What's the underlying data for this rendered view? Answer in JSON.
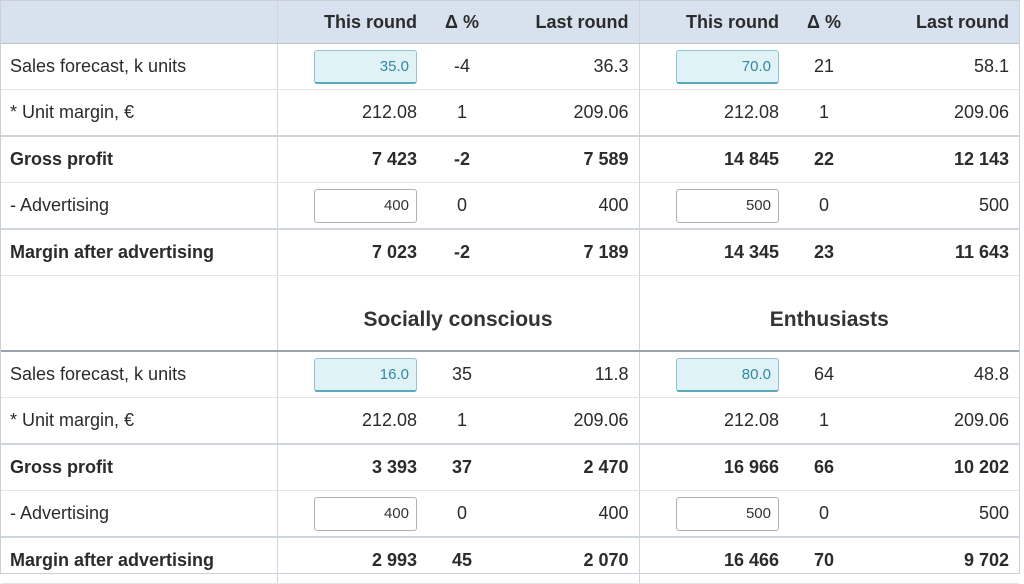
{
  "headers": {
    "this_round": "This round",
    "delta": "Δ %",
    "last_round": "Last round"
  },
  "segments": [
    "Socially conscious",
    "Enthusiasts"
  ],
  "rows_labels": {
    "sales": "Sales forecast, k units",
    "unit_margin": "* Unit margin, €",
    "gross": "Gross profit",
    "adv": "- Advertising",
    "margin_adv": "Margin after advertising"
  },
  "top": {
    "left": {
      "sales": {
        "input": "35.0",
        "delta": "-4",
        "last": "36.3"
      },
      "unit_margin": {
        "this": "212.08",
        "delta": "1",
        "last": "209.06"
      },
      "gross": {
        "this": "7 423",
        "delta": "-2",
        "last": "7 589"
      },
      "adv": {
        "input": "400",
        "delta": "0",
        "last": "400"
      },
      "margin_adv": {
        "this": "7 023",
        "delta": "-2",
        "last": "7 189"
      }
    },
    "right": {
      "sales": {
        "input": "70.0",
        "delta": "21",
        "last": "58.1"
      },
      "unit_margin": {
        "this": "212.08",
        "delta": "1",
        "last": "209.06"
      },
      "gross": {
        "this": "14 845",
        "delta": "22",
        "last": "12 143"
      },
      "adv": {
        "input": "500",
        "delta": "0",
        "last": "500"
      },
      "margin_adv": {
        "this": "14 345",
        "delta": "23",
        "last": "11 643"
      }
    }
  },
  "bottom": {
    "left": {
      "sales": {
        "input": "16.0",
        "delta": "35",
        "last": "11.8"
      },
      "unit_margin": {
        "this": "212.08",
        "delta": "1",
        "last": "209.06"
      },
      "gross": {
        "this": "3 393",
        "delta": "37",
        "last": "2 470"
      },
      "adv": {
        "input": "400",
        "delta": "0",
        "last": "400"
      },
      "margin_adv": {
        "this": "2 993",
        "delta": "45",
        "last": "2 070"
      }
    },
    "right": {
      "sales": {
        "input": "80.0",
        "delta": "64",
        "last": "48.8"
      },
      "unit_margin": {
        "this": "212.08",
        "delta": "1",
        "last": "209.06"
      },
      "gross": {
        "this": "16 966",
        "delta": "66",
        "last": "10 202"
      },
      "adv": {
        "input": "500",
        "delta": "0",
        "last": "500"
      },
      "margin_adv": {
        "this": "16 466",
        "delta": "70",
        "last": "9 702"
      }
    }
  }
}
